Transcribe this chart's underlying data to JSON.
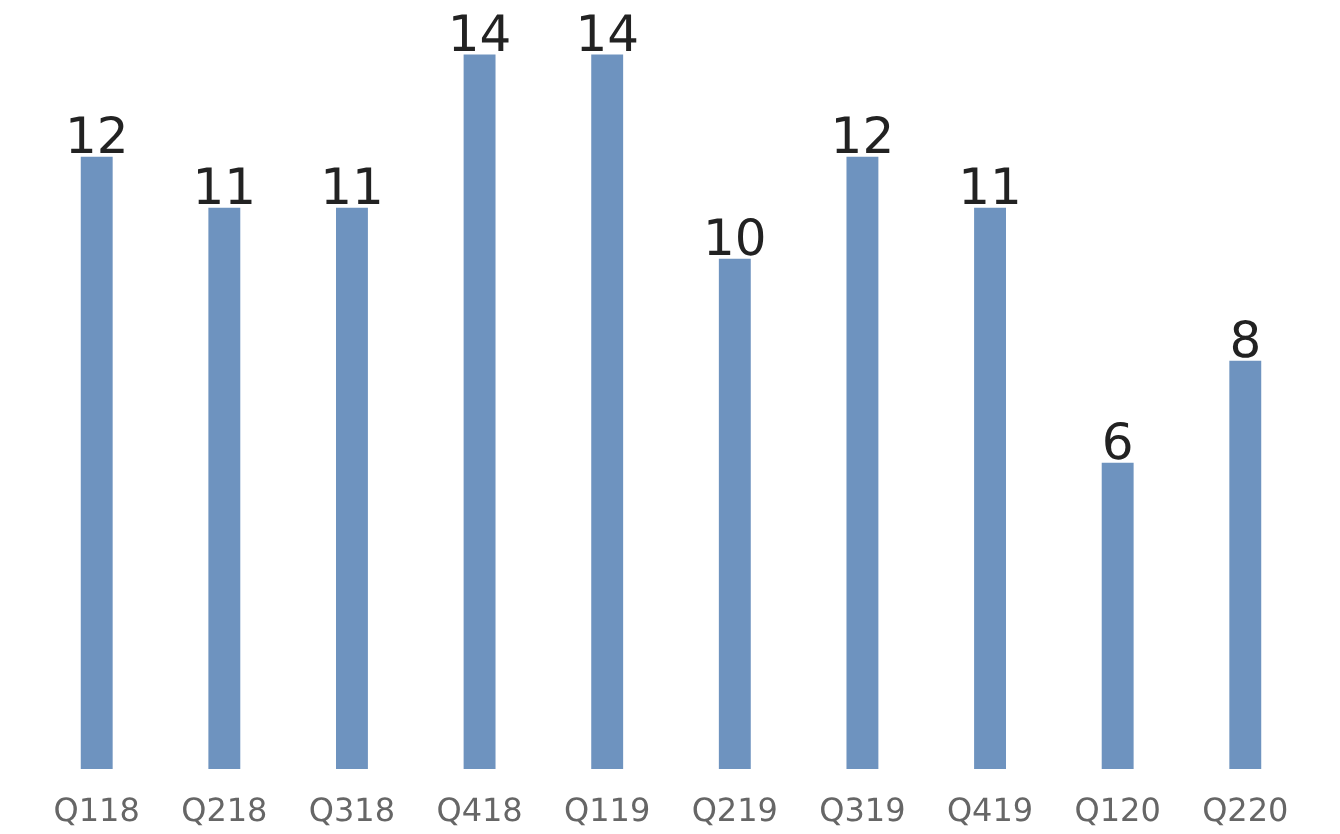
{
  "chart_data": {
    "type": "bar",
    "categories": [
      "Q118",
      "Q218",
      "Q318",
      "Q418",
      "Q119",
      "Q219",
      "Q319",
      "Q419",
      "Q120",
      "Q220"
    ],
    "values": [
      12,
      11,
      11,
      14,
      14,
      10,
      12,
      11,
      6,
      8
    ],
    "color": "#6e93bf",
    "tick_labels": "x",
    "data_labels": true
  }
}
